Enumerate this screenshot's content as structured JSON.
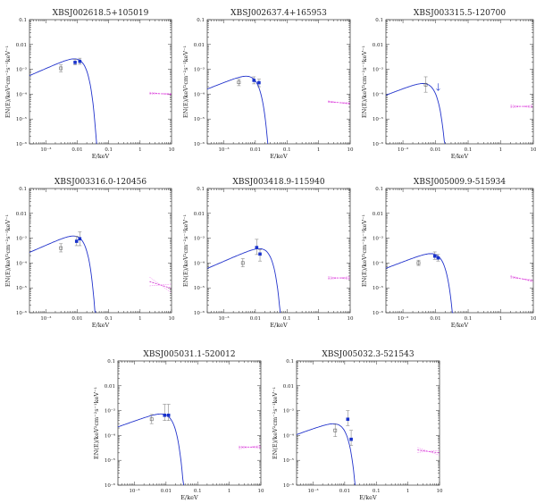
{
  "figure": {
    "xlabel": "E/keV",
    "ylabel": "EN(E)/keV²cm⁻²s⁻¹keV⁻¹"
  },
  "colors": {
    "model": "#2233cc",
    "xray_band": "#cc22cc",
    "points_filled": "#1a33cc",
    "points_open": "#666666"
  },
  "chart_data": [
    {
      "type": "scatter",
      "title": "XBSJ002618.5+105019",
      "xscale": "log",
      "yscale": "log",
      "xlim": [
        0.0003,
        10
      ],
      "ylim": [
        1e-06,
        0.1
      ],
      "x_ticks": [
        "10⁻³",
        "0.01",
        "0.1",
        "1",
        "10"
      ],
      "y_ticks": [
        "10⁻⁶",
        "10⁻⁵",
        "10⁻⁴",
        "10⁻³",
        "0.01",
        "0.1"
      ],
      "model": {
        "norm": 0.0023,
        "peak": 0.012,
        "slope": 0.55,
        "cut": 0.015,
        "xmin": 0.0003,
        "xmax": 0.13
      },
      "open_points": [
        {
          "x": 0.003,
          "y": 0.0011,
          "ylo": 0.0008,
          "yhi": 0.0015
        }
      ],
      "filled_points": [
        {
          "x": 0.0085,
          "y": 0.0019,
          "ylo": 0.0015,
          "yhi": 0.0025
        },
        {
          "x": 0.012,
          "y": 0.0021,
          "ylo": 0.0016,
          "yhi": 0.0028
        }
      ],
      "upper_limits": [],
      "xray": {
        "x": [
          2,
          10
        ],
        "y": [
          0.00011,
          0.0001
        ],
        "spread": 1.1
      }
    },
    {
      "type": "scatter",
      "title": "XBSJ002637.4+165953",
      "xscale": "log",
      "yscale": "log",
      "xlim": [
        0.0003,
        10
      ],
      "ylim": [
        1e-06,
        0.1
      ],
      "x_ticks": [
        "10⁻³",
        "0.01",
        "0.1",
        "1",
        "10"
      ],
      "y_ticks": [
        "10⁻⁶",
        "10⁻⁵",
        "10⁻⁴",
        "10⁻³",
        "0.01",
        "0.1"
      ],
      "model": {
        "norm": 0.00045,
        "peak": 0.008,
        "slope": 0.5,
        "cut": 0.01,
        "xmin": 0.0003,
        "xmax": 0.06
      },
      "open_points": [
        {
          "x": 0.003,
          "y": 0.0003,
          "ylo": 0.00022,
          "yhi": 0.0004
        }
      ],
      "filled_points": [
        {
          "x": 0.009,
          "y": 0.00036,
          "ylo": 0.00026,
          "yhi": 0.0005
        },
        {
          "x": 0.013,
          "y": 0.00029,
          "ylo": 0.0002,
          "yhi": 0.0004
        }
      ],
      "upper_limits": [],
      "xray": {
        "x": [
          2,
          10
        ],
        "y": [
          5e-05,
          4.2e-05
        ],
        "spread": 1.08
      }
    },
    {
      "type": "scatter",
      "title": "XBSJ003315.5-120700",
      "xscale": "log",
      "yscale": "log",
      "xlim": [
        0.0003,
        10
      ],
      "ylim": [
        1e-06,
        0.1
      ],
      "x_ticks": [
        "10⁻³",
        "0.01",
        "0.1",
        "1",
        "10"
      ],
      "y_ticks": [
        "10⁻⁶",
        "10⁻⁵",
        "10⁻⁴",
        "10⁻³",
        "0.01",
        "0.1"
      ],
      "model": {
        "norm": 0.00024,
        "peak": 0.006,
        "slope": 0.5,
        "cut": 0.008,
        "xmin": 0.0003,
        "xmax": 0.045
      },
      "open_points": [
        {
          "x": 0.005,
          "y": 0.00024,
          "ylo": 0.00012,
          "yhi": 0.0005
        }
      ],
      "filled_points": [],
      "upper_limits": [
        {
          "x": 0.012,
          "y": 0.00018
        }
      ],
      "xray": {
        "x": [
          2,
          10
        ],
        "y": [
          3.2e-05,
          3.2e-05
        ],
        "spread": 1.15
      }
    },
    {
      "type": "scatter",
      "title": "XBSJ003316.0-120456",
      "xscale": "log",
      "yscale": "log",
      "xlim": [
        0.0003,
        10
      ],
      "ylim": [
        1e-06,
        0.1
      ],
      "x_ticks": [
        "10⁻³",
        "0.01",
        "0.1",
        "1",
        "10"
      ],
      "y_ticks": [
        "10⁻⁶",
        "10⁻⁵",
        "10⁻⁴",
        "10⁻³",
        "0.01",
        "0.1"
      ],
      "model": {
        "norm": 0.001,
        "peak": 0.012,
        "slope": 0.55,
        "cut": 0.014,
        "xmin": 0.0003,
        "xmax": 0.12
      },
      "open_points": [
        {
          "x": 0.003,
          "y": 0.0004,
          "ylo": 0.00028,
          "yhi": 0.0006
        }
      ],
      "filled_points": [
        {
          "x": 0.0095,
          "y": 0.00075,
          "ylo": 0.0005,
          "yhi": 0.0012
        },
        {
          "x": 0.012,
          "y": 0.00095,
          "ylo": 0.0005,
          "yhi": 0.0018
        }
      ],
      "upper_limits": [],
      "xray": {
        "x": [
          2,
          10
        ],
        "y": [
          1.8e-05,
          9.5e-06
        ],
        "spread": 1.5
      }
    },
    {
      "type": "scatter",
      "title": "XBSJ003418.9-115940",
      "xscale": "log",
      "yscale": "log",
      "xlim": [
        0.0003,
        10
      ],
      "ylim": [
        1e-06,
        0.1
      ],
      "x_ticks": [
        "10⁻³",
        "0.01",
        "0.1",
        "1",
        "10"
      ],
      "y_ticks": [
        "10⁻⁶",
        "10⁻⁵",
        "10⁻⁴",
        "10⁻³",
        "0.01",
        "0.1"
      ],
      "model": {
        "norm": 0.00033,
        "peak": 0.02,
        "slope": 0.55,
        "cut": 0.025,
        "xmin": 0.0003,
        "xmax": 0.12
      },
      "open_points": [
        {
          "x": 0.004,
          "y": 0.0001,
          "ylo": 7e-05,
          "yhi": 0.00015
        }
      ],
      "filled_points": [
        {
          "x": 0.011,
          "y": 0.00042,
          "ylo": 0.00022,
          "yhi": 0.0009
        },
        {
          "x": 0.014,
          "y": 0.00023,
          "ylo": 0.00012,
          "yhi": 0.00035
        }
      ],
      "upper_limits": [],
      "xray": {
        "x": [
          2,
          10
        ],
        "y": [
          2.5e-05,
          2.5e-05
        ],
        "spread": 1.15
      }
    },
    {
      "type": "scatter",
      "title": "XBSJ005009.9-515934",
      "xscale": "log",
      "yscale": "log",
      "xlim": [
        0.0003,
        10
      ],
      "ylim": [
        1e-06,
        0.1
      ],
      "x_ticks": [
        "10⁻³",
        "0.01",
        "0.1",
        "1",
        "10"
      ],
      "y_ticks": [
        "10⁻⁶",
        "10⁻⁵",
        "10⁻⁴",
        "10⁻³",
        "0.01",
        "0.1"
      ],
      "model": {
        "norm": 0.00019,
        "peak": 0.012,
        "slope": 0.5,
        "cut": 0.014,
        "xmin": 0.0003,
        "xmax": 0.09
      },
      "open_points": [
        {
          "x": 0.003,
          "y": 0.0001,
          "ylo": 8e-05,
          "yhi": 0.00013
        }
      ],
      "filled_points": [
        {
          "x": 0.0095,
          "y": 0.00019,
          "ylo": 0.00014,
          "yhi": 0.00028
        },
        {
          "x": 0.012,
          "y": 0.00016,
          "ylo": 0.00012,
          "yhi": 0.00022
        }
      ],
      "upper_limits": [],
      "xray": {
        "x": [
          2,
          10
        ],
        "y": [
          2.8e-05,
          1.9e-05
        ],
        "spread": 1.12
      }
    },
    {
      "type": "scatter",
      "title": "XBSJ005031.1-520012",
      "xscale": "log",
      "yscale": "log",
      "xlim": [
        0.0003,
        10
      ],
      "ylim": [
        1e-06,
        0.1
      ],
      "x_ticks": [
        "10⁻³",
        "0.01",
        "0.1",
        "1",
        "10"
      ],
      "y_ticks": [
        "10⁻⁶",
        "10⁻⁵",
        "10⁻⁴",
        "10⁻³",
        "0.01",
        "0.1"
      ],
      "model": {
        "norm": 0.0007,
        "peak": 0.009,
        "slope": 0.45,
        "cut": 0.014,
        "xmin": 0.0003,
        "xmax": 0.11
      },
      "open_points": [
        {
          "x": 0.0035,
          "y": 0.00045,
          "ylo": 0.0003,
          "yhi": 0.0007
        }
      ],
      "filled_points": [
        {
          "x": 0.009,
          "y": 0.00065,
          "ylo": 0.0004,
          "yhi": 0.0018
        },
        {
          "x": 0.012,
          "y": 0.00065,
          "ylo": 0.0004,
          "yhi": 0.0018
        }
      ],
      "upper_limits": [],
      "xray": {
        "x": [
          2,
          10
        ],
        "y": [
          3.3e-05,
          3.5e-05
        ],
        "spread": 1.15
      }
    },
    {
      "type": "scatter",
      "title": "XBSJ005032.3-521543",
      "xscale": "log",
      "yscale": "log",
      "xlim": [
        0.0003,
        10
      ],
      "ylim": [
        1e-06,
        0.1
      ],
      "x_ticks": [
        "10⁻³",
        "0.01",
        "0.1",
        "1",
        "10"
      ],
      "y_ticks": [
        "10⁻⁶",
        "10⁻⁵",
        "10⁻⁴",
        "10⁻³",
        "0.01",
        "0.1"
      ],
      "model": {
        "norm": 0.00022,
        "peak": 0.008,
        "slope": 0.45,
        "cut": 0.009,
        "xmin": 0.0003,
        "xmax": 0.05
      },
      "open_points": [
        {
          "x": 0.005,
          "y": 0.00016,
          "ylo": 9e-05,
          "yhi": 0.00028
        }
      ],
      "filled_points": [
        {
          "x": 0.0125,
          "y": 0.00045,
          "ylo": 0.00025,
          "yhi": 0.001
        },
        {
          "x": 0.016,
          "y": 7e-05,
          "ylo": 4e-05,
          "yhi": 0.00016
        }
      ],
      "upper_limits": [],
      "xray": {
        "x": [
          2,
          10
        ],
        "y": [
          2.6e-05,
          2e-05
        ],
        "spread": 1.25
      }
    }
  ]
}
